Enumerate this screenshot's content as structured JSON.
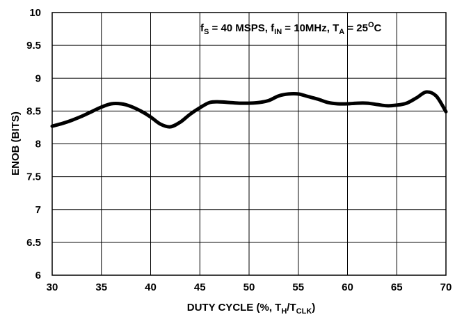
{
  "chart_data": {
    "type": "line",
    "xlabel_main": "DUTY CYCLE (%, T",
    "xlabel_sub1": "H",
    "xlabel_mid": "/T",
    "xlabel_sub2": "CLK",
    "xlabel_end": ")",
    "ylabel": "ENOB (BITS)",
    "xlim": [
      30,
      70
    ],
    "ylim": [
      6,
      10
    ],
    "x_ticks": [
      "30",
      "35",
      "40",
      "45",
      "50",
      "55",
      "60",
      "65",
      "70"
    ],
    "y_ticks": [
      "6",
      "6.5",
      "7",
      "7.5",
      "8",
      "8.5",
      "9",
      "9.5",
      "10"
    ],
    "grid": true,
    "annotation": {
      "p1": "f",
      "p1_sub": "S",
      "p2": " = 40 MSPS, f",
      "p2_sub": "IN",
      "p3": " = 10MHz, T",
      "p3_sub": "A",
      "p4": " = 25",
      "p4_sup": "O",
      "p5": "C"
    },
    "series": [
      {
        "x": [
          30,
          31,
          32,
          33,
          34,
          35,
          36,
          37,
          38,
          39,
          40,
          41,
          42,
          43,
          44,
          45,
          46,
          47,
          48,
          49,
          50,
          51,
          52,
          53,
          54,
          55,
          56,
          57,
          58,
          59,
          60,
          61,
          62,
          63,
          64,
          65,
          66,
          67,
          68,
          69,
          70
        ],
        "y": [
          8.27,
          8.31,
          8.36,
          8.42,
          8.49,
          8.56,
          8.61,
          8.61,
          8.57,
          8.5,
          8.41,
          8.3,
          8.26,
          8.33,
          8.45,
          8.55,
          8.63,
          8.64,
          8.63,
          8.62,
          8.62,
          8.63,
          8.66,
          8.73,
          8.76,
          8.76,
          8.72,
          8.68,
          8.63,
          8.61,
          8.61,
          8.62,
          8.62,
          8.6,
          8.58,
          8.59,
          8.62,
          8.7,
          8.79,
          8.73,
          8.49
        ]
      }
    ]
  }
}
